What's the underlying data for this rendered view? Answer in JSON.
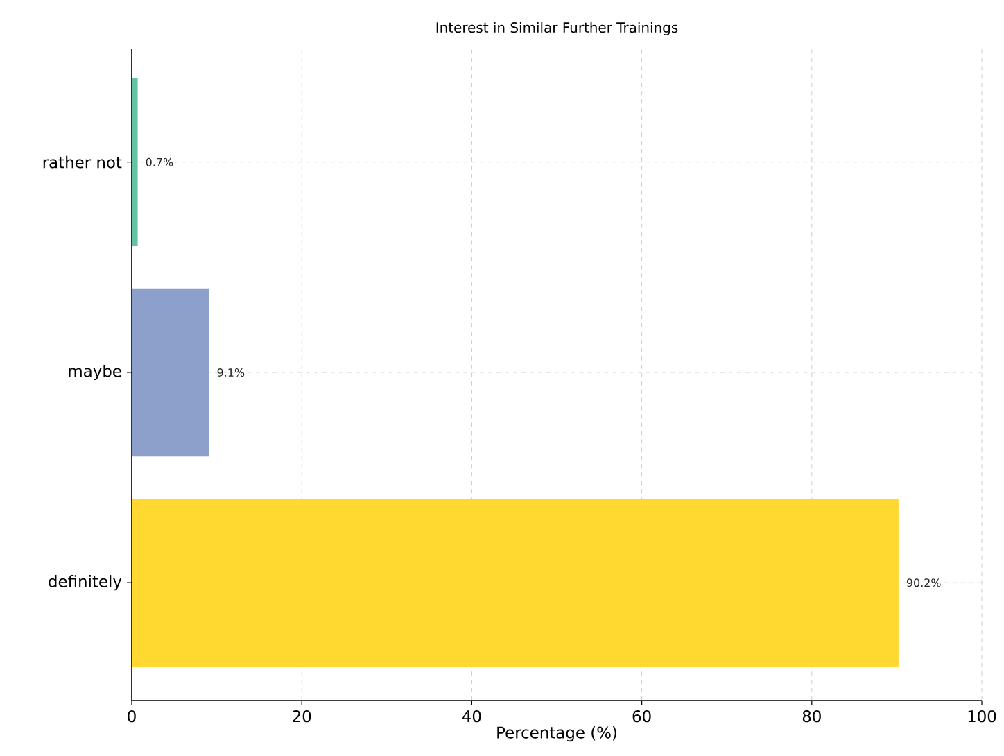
{
  "chart_data": {
    "type": "bar",
    "orientation": "horizontal",
    "title": "Interest in Similar Further Trainings",
    "xlabel": "Percentage (%)",
    "categories": [
      "rather not",
      "maybe",
      "definitely"
    ],
    "values": [
      0.7,
      9.1,
      90.2
    ],
    "colors": [
      "#66c2a5",
      "#8da0cb",
      "#ffd92f"
    ],
    "value_labels": [
      "0.7%",
      "9.1%",
      "90.2%"
    ],
    "xlim": [
      0,
      100
    ],
    "xticks": [
      0,
      20,
      40,
      60,
      80,
      100
    ],
    "grid": true
  }
}
